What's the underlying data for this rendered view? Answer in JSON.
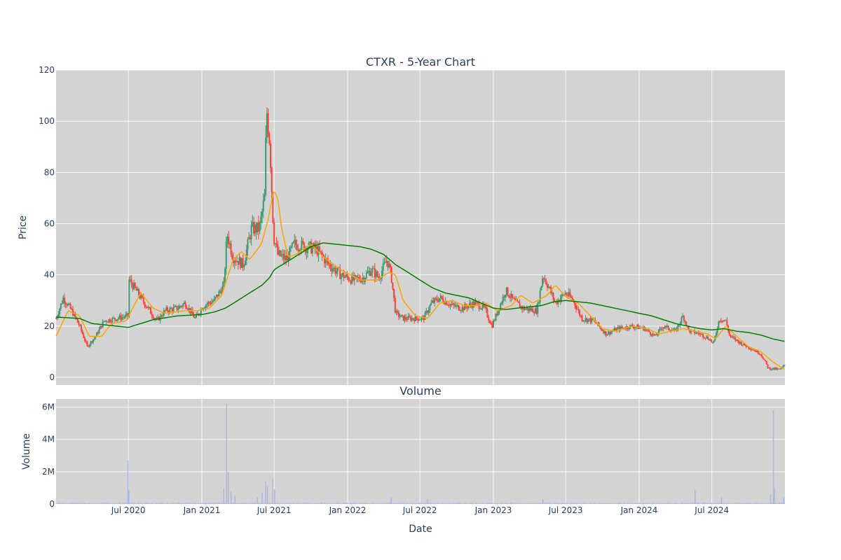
{
  "chart_data": [
    {
      "type": "candlestick",
      "title": "CTXR - 5-Year Chart",
      "ylabel": "Price",
      "ylim": [
        -3,
        120
      ],
      "yticks": [
        0,
        20,
        40,
        60,
        80,
        100,
        120
      ],
      "x_range": [
        "2020-01-02",
        "2024-12-31"
      ],
      "grid": true,
      "colors": {
        "increasing": "#3d9970",
        "decreasing": "#ff4136",
        "ma_short": "#ffa500",
        "ma_long": "#008000",
        "plot_bg": "#d3d3d3"
      },
      "price_anchors": [
        [
          "2020-01-02",
          23
        ],
        [
          "2020-01-20",
          31
        ],
        [
          "2020-02-10",
          26
        ],
        [
          "2020-03-01",
          20
        ],
        [
          "2020-03-20",
          12
        ],
        [
          "2020-04-10",
          16
        ],
        [
          "2020-05-01",
          22
        ],
        [
          "2020-06-01",
          23
        ],
        [
          "2020-06-30",
          24
        ],
        [
          "2020-07-03",
          38
        ],
        [
          "2020-07-20",
          34
        ],
        [
          "2020-08-15",
          28
        ],
        [
          "2020-09-10",
          22
        ],
        [
          "2020-10-01",
          26
        ],
        [
          "2020-11-01",
          27
        ],
        [
          "2020-11-20",
          29
        ],
        [
          "2020-12-15",
          23
        ],
        [
          "2021-01-05",
          28
        ],
        [
          "2021-02-01",
          30
        ],
        [
          "2021-02-25",
          36
        ],
        [
          "2021-03-05",
          56
        ],
        [
          "2021-03-20",
          47
        ],
        [
          "2021-04-15",
          44
        ],
        [
          "2021-05-05",
          58
        ],
        [
          "2021-05-25",
          58
        ],
        [
          "2021-06-07",
          70
        ],
        [
          "2021-06-12",
          105
        ],
        [
          "2021-06-20",
          92
        ],
        [
          "2021-06-30",
          55
        ],
        [
          "2021-07-10",
          48
        ],
        [
          "2021-08-01",
          46
        ],
        [
          "2021-08-20",
          52
        ],
        [
          "2021-09-20",
          51
        ],
        [
          "2021-10-15",
          50
        ],
        [
          "2021-11-15",
          44
        ],
        [
          "2021-12-15",
          40
        ],
        [
          "2022-01-15",
          38
        ],
        [
          "2022-02-10",
          39
        ],
        [
          "2022-03-01",
          42
        ],
        [
          "2022-03-20",
          39
        ],
        [
          "2022-04-10",
          46
        ],
        [
          "2022-04-20",
          40
        ],
        [
          "2022-05-01",
          25
        ],
        [
          "2022-05-20",
          23
        ],
        [
          "2022-06-15",
          23
        ],
        [
          "2022-07-10",
          23
        ],
        [
          "2022-07-30",
          29
        ],
        [
          "2022-08-20",
          31
        ],
        [
          "2022-09-20",
          28
        ],
        [
          "2022-10-15",
          27
        ],
        [
          "2022-11-15",
          29
        ],
        [
          "2022-12-10",
          27
        ],
        [
          "2022-12-28",
          20
        ],
        [
          "2023-01-15",
          27
        ],
        [
          "2023-02-01",
          34
        ],
        [
          "2023-02-20",
          30
        ],
        [
          "2023-03-15",
          27
        ],
        [
          "2023-04-20",
          26
        ],
        [
          "2023-05-05",
          40
        ],
        [
          "2023-05-20",
          35
        ],
        [
          "2023-06-05",
          29
        ],
        [
          "2023-07-01",
          33
        ],
        [
          "2023-07-20",
          30
        ],
        [
          "2023-08-10",
          23
        ],
        [
          "2023-09-10",
          22
        ],
        [
          "2023-10-10",
          17
        ],
        [
          "2023-11-10",
          19
        ],
        [
          "2023-12-15",
          20
        ],
        [
          "2024-01-15",
          19
        ],
        [
          "2024-02-10",
          16
        ],
        [
          "2024-03-01",
          20
        ],
        [
          "2024-04-01",
          18
        ],
        [
          "2024-04-20",
          24
        ],
        [
          "2024-05-05",
          18
        ],
        [
          "2024-06-01",
          17
        ],
        [
          "2024-06-25",
          15
        ],
        [
          "2024-07-05",
          13
        ],
        [
          "2024-07-20",
          23
        ],
        [
          "2024-08-05",
          22
        ],
        [
          "2024-08-15",
          16
        ],
        [
          "2024-09-15",
          13
        ],
        [
          "2024-10-10",
          11
        ],
        [
          "2024-11-01",
          9
        ],
        [
          "2024-11-20",
          3.5
        ],
        [
          "2024-12-20",
          3
        ],
        [
          "2024-12-31",
          5
        ]
      ],
      "ma_short_anchors": [
        [
          "2020-01-02",
          16
        ],
        [
          "2020-02-01",
          26
        ],
        [
          "2020-03-01",
          24
        ],
        [
          "2020-03-25",
          16
        ],
        [
          "2020-04-25",
          16
        ],
        [
          "2020-05-20",
          21
        ],
        [
          "2020-06-25",
          22
        ],
        [
          "2020-08-01",
          33
        ],
        [
          "2020-09-01",
          27
        ],
        [
          "2020-10-01",
          25
        ],
        [
          "2020-11-15",
          26
        ],
        [
          "2020-12-20",
          26
        ],
        [
          "2021-01-20",
          27
        ],
        [
          "2021-02-20",
          32
        ],
        [
          "2021-03-20",
          46
        ],
        [
          "2021-04-10",
          49
        ],
        [
          "2021-05-01",
          46
        ],
        [
          "2021-05-30",
          52
        ],
        [
          "2021-06-15",
          61
        ],
        [
          "2021-06-30",
          73
        ],
        [
          "2021-07-10",
          70
        ],
        [
          "2021-07-20",
          58
        ],
        [
          "2021-08-05",
          47
        ],
        [
          "2021-08-25",
          48
        ],
        [
          "2021-10-01",
          52
        ],
        [
          "2021-11-01",
          47
        ],
        [
          "2021-12-15",
          42
        ],
        [
          "2022-02-01",
          38
        ],
        [
          "2022-03-15",
          38
        ],
        [
          "2022-04-15",
          41
        ],
        [
          "2022-05-01",
          40
        ],
        [
          "2022-05-20",
          30
        ],
        [
          "2022-06-20",
          24
        ],
        [
          "2022-07-20",
          23
        ],
        [
          "2022-08-20",
          29
        ],
        [
          "2022-09-20",
          30
        ],
        [
          "2022-10-20",
          28
        ],
        [
          "2022-11-20",
          28
        ],
        [
          "2022-12-15",
          29
        ],
        [
          "2023-01-10",
          26
        ],
        [
          "2023-02-15",
          28
        ],
        [
          "2023-03-10",
          32
        ],
        [
          "2023-04-10",
          29
        ],
        [
          "2023-05-15",
          32
        ],
        [
          "2023-06-05",
          36
        ],
        [
          "2023-07-05",
          31
        ],
        [
          "2023-08-01",
          29
        ],
        [
          "2023-09-01",
          24
        ],
        [
          "2023-10-01",
          19
        ],
        [
          "2023-11-01",
          18
        ],
        [
          "2023-12-15",
          20
        ],
        [
          "2024-01-20",
          19
        ],
        [
          "2024-02-20",
          17
        ],
        [
          "2024-03-20",
          18
        ],
        [
          "2024-04-20",
          19
        ],
        [
          "2024-05-20",
          18
        ],
        [
          "2024-06-20",
          17
        ],
        [
          "2024-07-10",
          15
        ],
        [
          "2024-08-05",
          20
        ],
        [
          "2024-09-01",
          16
        ],
        [
          "2024-10-01",
          12
        ],
        [
          "2024-11-01",
          10
        ],
        [
          "2024-12-01",
          6
        ],
        [
          "2024-12-31",
          3
        ]
      ],
      "ma_long_anchors": [
        [
          "2020-01-02",
          23.5
        ],
        [
          "2020-03-01",
          23
        ],
        [
          "2020-04-01",
          21
        ],
        [
          "2020-05-01",
          20.5
        ],
        [
          "2020-06-01",
          20
        ],
        [
          "2020-07-01",
          19.5
        ],
        [
          "2020-08-01",
          21
        ],
        [
          "2020-09-01",
          22.5
        ],
        [
          "2020-11-01",
          24
        ],
        [
          "2021-01-01",
          24.5
        ],
        [
          "2021-02-01",
          25.5
        ],
        [
          "2021-03-01",
          27
        ],
        [
          "2021-04-01",
          30
        ],
        [
          "2021-05-01",
          33
        ],
        [
          "2021-06-01",
          36
        ],
        [
          "2021-06-20",
          39
        ],
        [
          "2021-07-01",
          42
        ],
        [
          "2021-08-01",
          45
        ],
        [
          "2021-09-01",
          48
        ],
        [
          "2021-10-01",
          51
        ],
        [
          "2021-11-01",
          52.5
        ],
        [
          "2021-12-01",
          52
        ],
        [
          "2022-02-01",
          51
        ],
        [
          "2022-03-01",
          50
        ],
        [
          "2022-04-01",
          48
        ],
        [
          "2022-05-01",
          44
        ],
        [
          "2022-06-01",
          41
        ],
        [
          "2022-07-01",
          38
        ],
        [
          "2022-08-01",
          35
        ],
        [
          "2022-09-01",
          33
        ],
        [
          "2022-10-01",
          32
        ],
        [
          "2022-11-01",
          31
        ],
        [
          "2022-12-01",
          29
        ],
        [
          "2023-01-01",
          27
        ],
        [
          "2023-02-01",
          26.5
        ],
        [
          "2023-03-01",
          27
        ],
        [
          "2023-05-01",
          28
        ],
        [
          "2023-06-01",
          29.5
        ],
        [
          "2023-07-01",
          30
        ],
        [
          "2023-09-01",
          29
        ],
        [
          "2023-11-01",
          27
        ],
        [
          "2024-01-01",
          25
        ],
        [
          "2024-02-01",
          24
        ],
        [
          "2024-04-01",
          21
        ],
        [
          "2024-05-01",
          20
        ],
        [
          "2024-06-01",
          19
        ],
        [
          "2024-07-01",
          18.5
        ],
        [
          "2024-08-01",
          19
        ],
        [
          "2024-09-01",
          18
        ],
        [
          "2024-10-01",
          17.5
        ],
        [
          "2024-11-01",
          16.5
        ],
        [
          "2024-12-01",
          15
        ],
        [
          "2024-12-31",
          14
        ]
      ]
    },
    {
      "type": "bar",
      "title": "Volume",
      "xlabel": "Date",
      "ylabel": "Volume",
      "ylim": [
        0,
        6500000
      ],
      "ytick_values": [
        0,
        2000000,
        4000000,
        6000000
      ],
      "ytick_labels": [
        "0",
        "2M",
        "4M",
        "6M"
      ],
      "xtick_dates": [
        "2020-07-01",
        "2021-01-01",
        "2021-07-01",
        "2022-01-01",
        "2022-07-01",
        "2023-01-01",
        "2023-07-01",
        "2024-01-01",
        "2024-07-01"
      ],
      "xtick_labels": [
        "Jul 2020",
        "Jan 2021",
        "Jul 2021",
        "Jan 2022",
        "Jul 2022",
        "Jan 2023",
        "Jul 2023",
        "Jan 2024",
        "Jul 2024"
      ],
      "grid": true,
      "colors": {
        "bar": "#aab4e8",
        "plot_bg": "#d3d3d3"
      },
      "baseline": 60000,
      "spikes": [
        [
          "2020-06-30",
          2700000
        ],
        [
          "2020-07-02",
          900000
        ],
        [
          "2021-02-25",
          1000000
        ],
        [
          "2021-03-04",
          6200000
        ],
        [
          "2021-03-08",
          2000000
        ],
        [
          "2021-03-15",
          800000
        ],
        [
          "2021-03-25",
          500000
        ],
        [
          "2021-05-20",
          400000
        ],
        [
          "2021-06-01",
          700000
        ],
        [
          "2021-06-10",
          1400000
        ],
        [
          "2021-06-14",
          1100000
        ],
        [
          "2021-06-28",
          1600000
        ],
        [
          "2021-07-02",
          900000
        ],
        [
          "2022-04-20",
          400000
        ],
        [
          "2022-07-20",
          300000
        ],
        [
          "2023-05-05",
          300000
        ],
        [
          "2024-05-20",
          900000
        ],
        [
          "2024-07-25",
          400000
        ],
        [
          "2024-11-25",
          600000
        ],
        [
          "2024-12-02",
          5800000
        ],
        [
          "2024-12-05",
          1000000
        ],
        [
          "2024-12-28",
          400000
        ]
      ]
    }
  ]
}
